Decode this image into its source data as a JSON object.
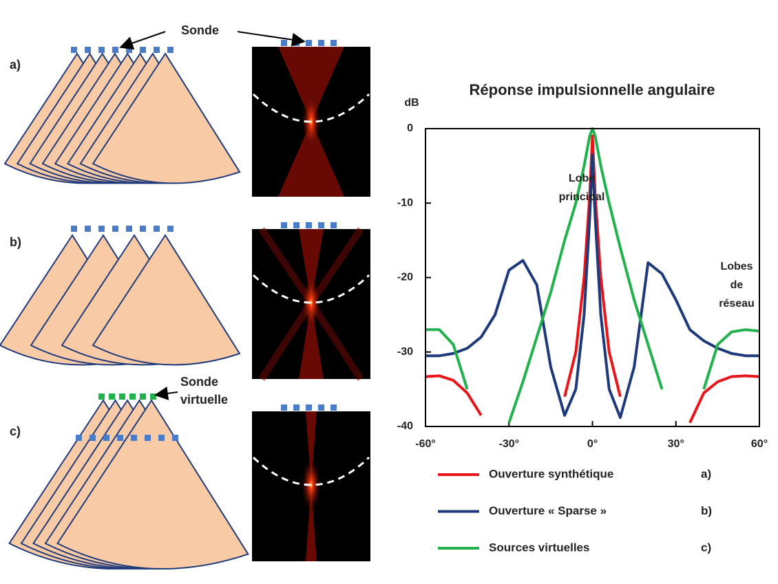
{
  "diagram": {
    "probe_label": "Sonde",
    "panel_labels": [
      "a)",
      "b)",
      "c)"
    ],
    "virtual_probe_label": [
      "Sonde",
      "virtuelle"
    ]
  },
  "chart_data": {
    "type": "line",
    "title": "Réponse impulsionnelle angulaire",
    "y_label": "dB",
    "annotations": [
      [
        "Lobe",
        "principal"
      ],
      [
        "Lobes",
        "de",
        "réseau"
      ]
    ],
    "x": [
      -60,
      -55,
      -50,
      -45,
      -40,
      -35,
      -30,
      -25,
      -20,
      -15,
      -10,
      -6,
      -3,
      -1,
      0,
      1,
      3,
      6,
      10,
      15,
      20,
      25,
      30,
      35,
      40,
      45,
      50,
      55,
      60
    ],
    "series": [
      {
        "name": "Ouverture synthétique",
        "color": "#e8151b",
        "values": [
          -33.3,
          -33.2,
          -33.8,
          -35.5,
          -38.5,
          null,
          null,
          null,
          null,
          null,
          -36,
          -30,
          -20,
          -9,
          -1,
          -9,
          -20,
          -30,
          -36,
          null,
          null,
          null,
          null,
          -39.5,
          -35.5,
          -34,
          -33.3,
          -33.2,
          -33.3
        ]
      },
      {
        "name": "Ouverture « Sparse »",
        "color": "#1f3a7a",
        "values": [
          -30.5,
          -30.5,
          -30.2,
          -29.5,
          -28,
          -25,
          -19,
          -17.7,
          -21,
          -32,
          -38.5,
          -35,
          -25,
          -12,
          -3.5,
          -12,
          -25,
          -35,
          -38.8,
          -32,
          -18,
          -19.5,
          -23,
          -27,
          -28.5,
          -29.5,
          -30.2,
          -30.5,
          -30.5
        ]
      },
      {
        "name": "Sources virtuelles",
        "color": "#22b14c",
        "values": [
          -27,
          -27,
          -29,
          -35,
          null,
          null,
          -39.5,
          -34,
          -28,
          -22,
          -15,
          -10,
          -5,
          -1,
          0,
          -1,
          -5,
          -10,
          -16,
          -23,
          -29,
          -35,
          null,
          null,
          -35,
          -29,
          -27.3,
          -27,
          -27.2
        ]
      }
    ],
    "legend_labels": [
      "a)",
      "b)",
      "c)"
    ],
    "xlim": [
      -60,
      60
    ],
    "ylim": [
      -40,
      0
    ],
    "xticks": [
      {
        "value": -60,
        "label": "-60°"
      },
      {
        "value": -30,
        "label": "-30°"
      },
      {
        "value": 0,
        "label": "0°"
      },
      {
        "value": 30,
        "label": "30°"
      },
      {
        "value": 60,
        "label": "60°"
      }
    ],
    "yticks": [
      0,
      -10,
      -20,
      -30,
      -40
    ]
  }
}
